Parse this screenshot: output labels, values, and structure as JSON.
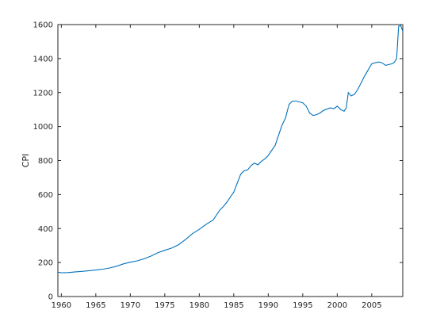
{
  "chart_data": {
    "type": "line",
    "title": "",
    "xlabel": "",
    "ylabel": "CPI",
    "xlim": [
      1959.5,
      2009.5
    ],
    "ylim": [
      0,
      1600
    ],
    "xticks": [
      1960,
      1965,
      1970,
      1975,
      1980,
      1985,
      1990,
      1995,
      2000,
      2005
    ],
    "yticks": [
      0,
      200,
      400,
      600,
      800,
      1000,
      1200,
      1400,
      1600
    ],
    "grid": false,
    "line_color": "#0072BD",
    "series": [
      {
        "x": [
          1959.5,
          1960,
          1961,
          1962,
          1963,
          1964,
          1965,
          1966,
          1967,
          1968,
          1969,
          1970,
          1971,
          1972,
          1973,
          1974,
          1975,
          1976,
          1977,
          1978,
          1979,
          1980,
          1981,
          1982,
          1983,
          1983.5,
          1984,
          1985,
          1986,
          1986.5,
          1987,
          1987.5,
          1988,
          1988.5,
          1989,
          1989.5,
          1990,
          1991,
          1992,
          1992.5,
          1993,
          1993.5,
          1994,
          1994.5,
          1995,
          1995.5,
          1996,
          1996.5,
          1997,
          1997.5,
          1998,
          1999,
          1999.5,
          2000,
          2000.5,
          2001,
          2001.3,
          2001.6,
          2002,
          2002.5,
          2003,
          2004,
          2005,
          2005.5,
          2006,
          2006.5,
          2007,
          2007.5,
          2008,
          2008.3,
          2008.6,
          2008.9,
          2009.2,
          2009.5
        ],
        "y": [
          143,
          140,
          141,
          145,
          148,
          152,
          156,
          161,
          168,
          178,
          192,
          202,
          210,
          222,
          238,
          258,
          272,
          285,
          305,
          335,
          370,
          395,
          425,
          450,
          510,
          530,
          555,
          615,
          720,
          740,
          745,
          770,
          785,
          775,
          795,
          810,
          830,
          890,
          1010,
          1050,
          1130,
          1150,
          1150,
          1145,
          1140,
          1120,
          1080,
          1065,
          1070,
          1080,
          1095,
          1110,
          1105,
          1120,
          1100,
          1090,
          1110,
          1200,
          1180,
          1190,
          1220,
          1300,
          1370,
          1375,
          1380,
          1375,
          1360,
          1365,
          1370,
          1380,
          1400,
          1590,
          1595,
          1560
        ]
      }
    ]
  }
}
